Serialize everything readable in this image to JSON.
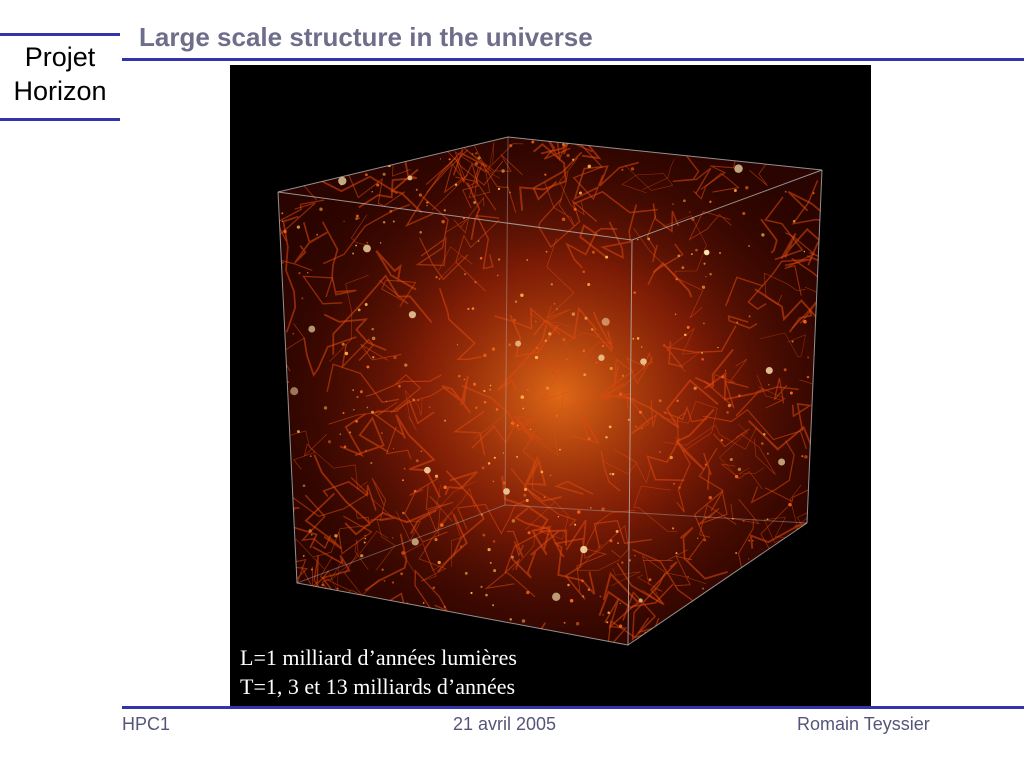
{
  "logo": {
    "line1": "Projet",
    "line2": "Horizon"
  },
  "slide": {
    "title": "Large scale structure in the universe"
  },
  "figure": {
    "caption_line1": "L=1 milliard d’années lumières",
    "caption_line2": "T=1, 3 et 13 milliards d’années"
  },
  "footer": {
    "left": "HPC1",
    "center": "21 avril 2005",
    "right": "Romain Teyssier"
  },
  "colors": {
    "accent_rule": "#3333aa",
    "title": "#6e6e8a",
    "footer": "#55557a"
  }
}
